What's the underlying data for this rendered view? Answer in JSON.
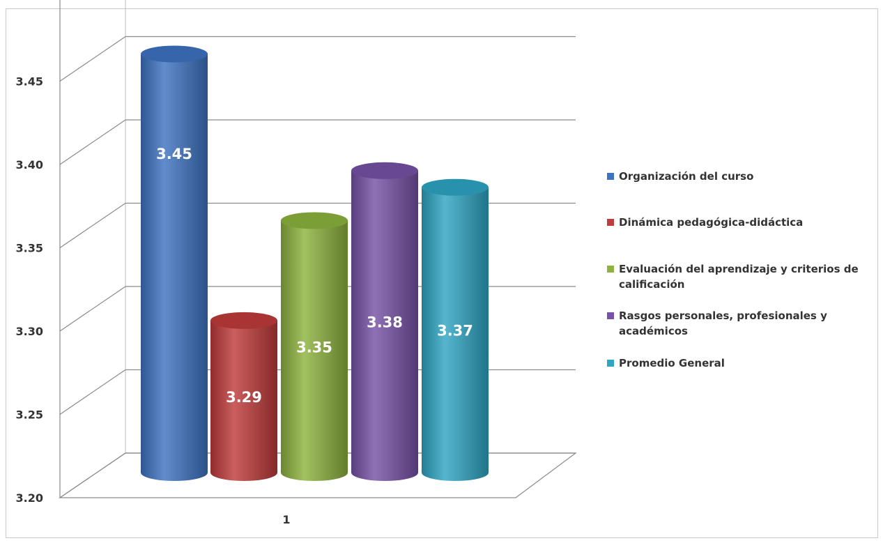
{
  "chart_data": {
    "type": "bar",
    "categories": [
      "1"
    ],
    "series": [
      {
        "name": "Organización del curso",
        "values": [
          3.45
        ],
        "color": "#3e73c2",
        "label": "3.45"
      },
      {
        "name": "Dinámica pedagógica-didáctica",
        "values": [
          3.29
        ],
        "color": "#c03b3b",
        "label": "3.29"
      },
      {
        "name": "Evaluación del aprendizaje y criterios de calificación",
        "values": [
          3.35
        ],
        "color": "#8db33e",
        "label": "3.35"
      },
      {
        "name": "Rasgos personales, profesionales y académicos",
        "values": [
          3.38
        ],
        "color": "#7752a6",
        "label": "3.38"
      },
      {
        "name": "Promedio General",
        "values": [
          3.37
        ],
        "color": "#2ea6c3",
        "label": "3.37"
      }
    ],
    "ylim": [
      3.2,
      3.45
    ],
    "yticks": [
      "3.20",
      "3.25",
      "3.30",
      "3.35",
      "3.40",
      "3.45"
    ],
    "grid": true,
    "legend": "right",
    "title": "",
    "xlabel": "",
    "ylabel": ""
  }
}
